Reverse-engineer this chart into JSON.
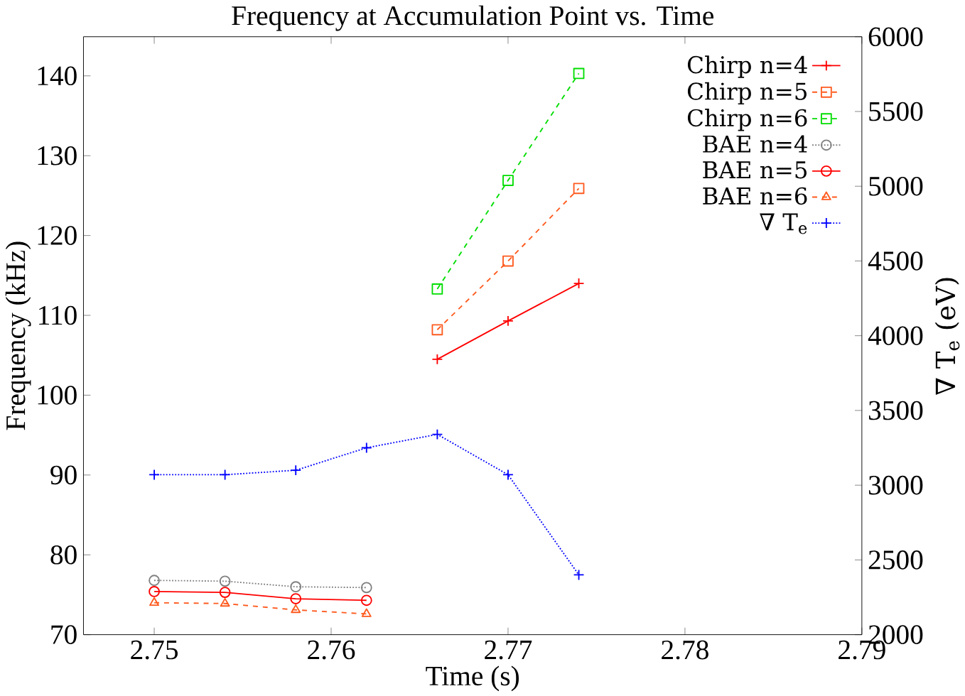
{
  "chart_data": {
    "type": "line",
    "title": "Frequency at Accumulation Point vs. Time",
    "xlabel": "Time (s)",
    "ylabel": "Frequency (kHz)",
    "y2label": "∇ T$_{e}$ (eV)",
    "x": [
      2.75,
      2.754,
      2.758,
      2.762,
      2.766,
      2.77,
      2.774
    ],
    "xlim": [
      2.746,
      2.79
    ],
    "xticks": [
      2.75,
      2.76,
      2.77,
      2.78,
      2.79
    ],
    "ylim": [
      70,
      144.9
    ],
    "yticks": [
      70,
      80,
      90,
      100,
      110,
      120,
      130,
      140
    ],
    "y2lim": [
      2000,
      6000
    ],
    "y2ticks": [
      2000,
      2500,
      3000,
      3500,
      4000,
      4500,
      5000,
      5500,
      6000
    ],
    "legend": "top right",
    "grid": false,
    "series": [
      {
        "name": "Chirp n=4",
        "color": "#ff0000",
        "marker": "cross",
        "line_style": "solid",
        "values": [
          null,
          null,
          null,
          null,
          104.5,
          109.3,
          114.0
        ]
      },
      {
        "name": "Chirp n=5",
        "color": "#ff5a1e",
        "marker": "square",
        "line_style": "dashed",
        "values": [
          null,
          null,
          null,
          null,
          108.2,
          116.8,
          125.9
        ]
      },
      {
        "name": "Chirp n=6",
        "color": "#00dd00",
        "marker": "square",
        "line_style": "dashed",
        "values": [
          null,
          null,
          null,
          null,
          113.3,
          126.9,
          140.3
        ]
      },
      {
        "name": "BAE n=4",
        "color": "#808080",
        "marker": "circle",
        "line_style": "dotted",
        "values": [
          76.8,
          76.7,
          76.0,
          75.9,
          null,
          null,
          null
        ]
      },
      {
        "name": "BAE n=5",
        "color": "#ff0000",
        "marker": "circle",
        "line_style": "solid",
        "values": [
          75.4,
          75.3,
          74.5,
          74.3,
          null,
          null,
          null
        ]
      },
      {
        "name": "BAE n=6",
        "color": "#ff5a1e",
        "marker": "triangle",
        "line_style": "dashed",
        "values": [
          74.0,
          73.9,
          73.1,
          72.6,
          null,
          null,
          null
        ]
      },
      {
        "name": "∇ T$_{e}$",
        "color": "#0000ff",
        "marker": "cross",
        "line_style": "dotted",
        "axis": "y2",
        "values": [
          3070,
          3070,
          3100,
          3250,
          3340,
          3070,
          2400
        ]
      }
    ]
  }
}
